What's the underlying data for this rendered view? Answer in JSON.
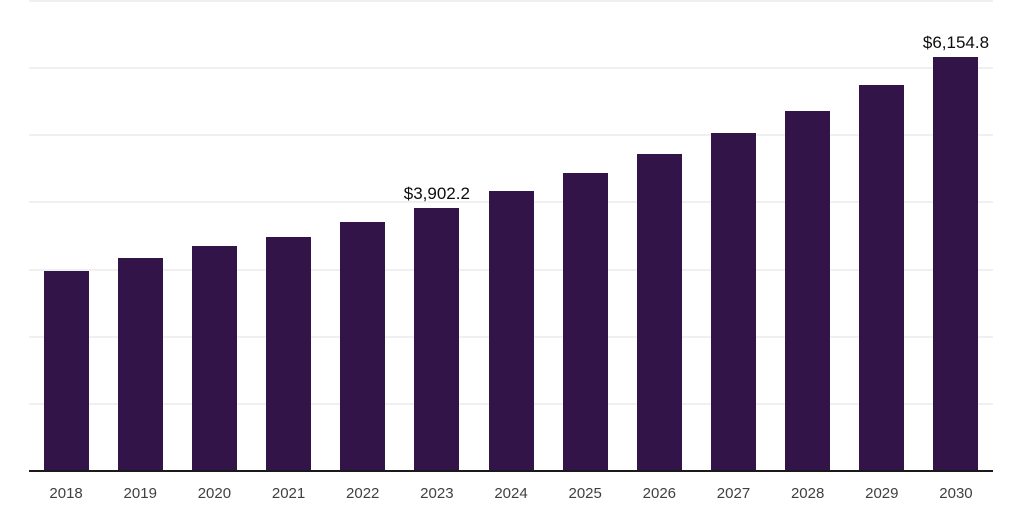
{
  "chart_data": {
    "type": "bar",
    "title": "",
    "xlabel": "",
    "ylabel": "",
    "categories": [
      "2018",
      "2019",
      "2020",
      "2021",
      "2022",
      "2023",
      "2024",
      "2025",
      "2026",
      "2027",
      "2028",
      "2029",
      "2030"
    ],
    "values": [
      2960,
      3160,
      3330,
      3470,
      3690,
      3902.2,
      4150,
      4420,
      4710,
      5020,
      5350,
      5740,
      6154.8
    ],
    "value_labels": [
      "",
      "",
      "",
      "",
      "",
      "$3,902.2",
      "",
      "",
      "",
      "",
      "",
      "",
      "$6,154.8"
    ],
    "ylim": [
      0,
      7000
    ],
    "grid_interval": 1000,
    "gridlines": "horizontal",
    "y_tick_labels_shown": false,
    "legend": "none",
    "colors": {
      "bar": "#331449",
      "axis": "#1a1a1a",
      "gridline": "#f0f0f0",
      "tick_label": "#404040",
      "value_label": "#0d0d0d",
      "background": "#ffffff"
    }
  }
}
